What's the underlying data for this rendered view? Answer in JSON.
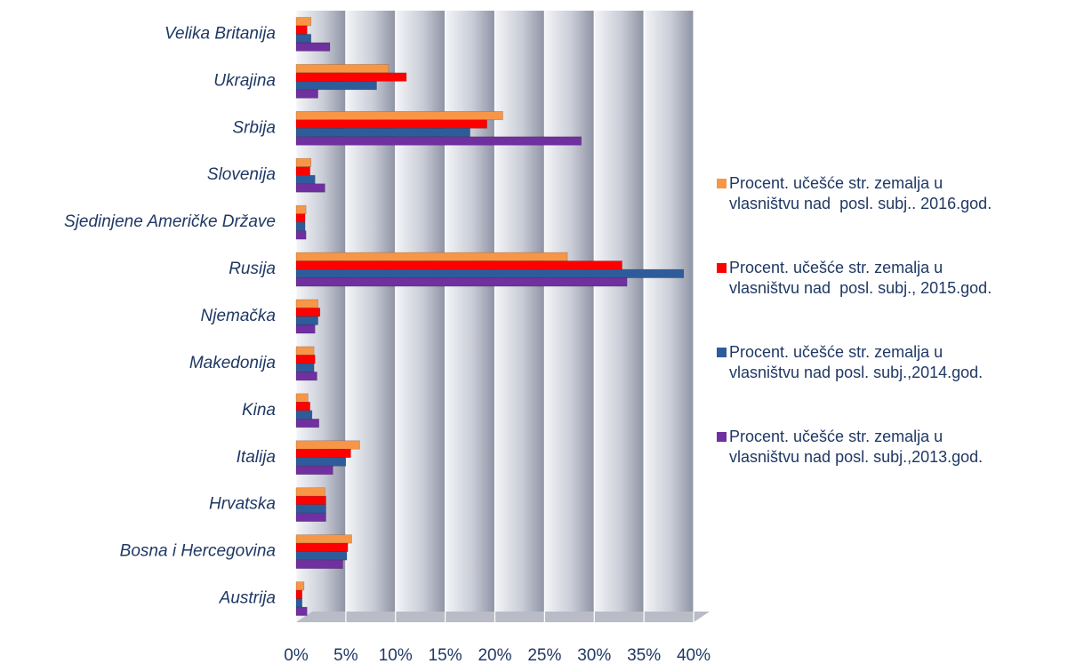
{
  "chart_data": {
    "type": "bar",
    "orientation": "horizontal",
    "categories": [
      "Velika Britanija",
      "Ukrajina",
      "Srbija",
      "Slovenija",
      "Sjedinjene Američke Države",
      "Rusija",
      "Njemačka",
      "Makedonija",
      "Kina",
      "Italija",
      "Hrvatska",
      "Bosna i Hercegovina",
      "Austrija"
    ],
    "series": [
      {
        "name": "Procent. učešće str. zemalja u\nvlasništvu nad  posl. subj.. 2016.god.",
        "color": "#f79646",
        "values": [
          1.5,
          9.3,
          20.8,
          1.5,
          1.0,
          27.3,
          2.2,
          1.8,
          1.2,
          6.4,
          2.9,
          5.6,
          0.8
        ]
      },
      {
        "name": "Procent. učešće str. zemalja u\nvlasništvu nad  posl. subj., 2015.god.",
        "color": "#ff0000",
        "values": [
          1.1,
          11.1,
          19.2,
          1.4,
          0.9,
          32.8,
          2.4,
          1.9,
          1.4,
          5.5,
          3.0,
          5.2,
          0.6
        ]
      },
      {
        "name": "Procent. učešće str. zemalja u\nvlasništvu nad posl. subj.,2014.god.",
        "color": "#2e5c9a",
        "values": [
          1.5,
          8.1,
          17.5,
          1.9,
          0.9,
          39.0,
          2.2,
          1.8,
          1.6,
          5.0,
          3.0,
          5.1,
          0.6
        ]
      },
      {
        "name": "Procent. učešće str. zemalja u\nvlasništvu nad posl. subj.,2013.god.",
        "color": "#7030a0",
        "values": [
          3.4,
          2.2,
          28.7,
          2.9,
          1.0,
          33.3,
          1.9,
          2.1,
          2.3,
          3.7,
          3.0,
          4.7,
          1.1
        ]
      }
    ],
    "xlim": [
      0,
      40
    ],
    "xticks": [
      {
        "value": 0,
        "label": "0%"
      },
      {
        "value": 5,
        "label": "5%"
      },
      {
        "value": 10,
        "label": "10%"
      },
      {
        "value": 15,
        "label": "15%"
      },
      {
        "value": 20,
        "label": "20%"
      },
      {
        "value": 25,
        "label": "25%"
      },
      {
        "value": 30,
        "label": "30%"
      },
      {
        "value": 35,
        "label": "35%"
      },
      {
        "value": 40,
        "label": "40%"
      }
    ],
    "grid": true,
    "legend": "right"
  }
}
